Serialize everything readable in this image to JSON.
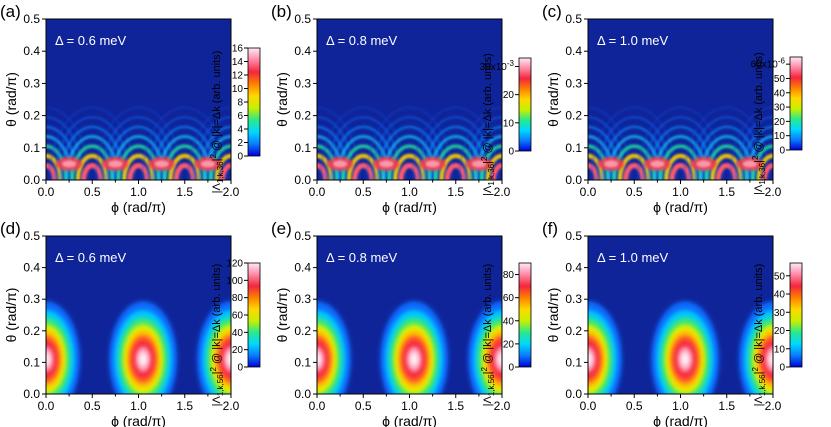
{
  "colors": {
    "background": "#10249a",
    "colormap": [
      "#0000d8",
      "#0a7cff",
      "#00d8ff",
      "#2ae98b",
      "#c8f000",
      "#ffd800",
      "#ff8000",
      "#f4263e",
      "#ff89a6",
      "#ffe9f4"
    ]
  },
  "axes": {
    "xlabel": "ϕ (rad/π)",
    "ylabel": "θ (rad/π)",
    "xticks": [
      "0.0",
      "0.5",
      "1.0",
      "1.5",
      "2.0"
    ],
    "yticks": [
      "0.0",
      "0.1",
      "0.2",
      "0.3",
      "0.4",
      "0.5"
    ],
    "xlim": [
      0,
      2
    ],
    "ylim": [
      0,
      0.5
    ]
  },
  "chart_data": [
    {
      "type": "heatmap",
      "panel": "(a)",
      "annotation": "Δ = 0.6 meV",
      "pattern": "rings",
      "xlim": [
        0,
        2
      ],
      "ylim": [
        0,
        0.5
      ],
      "colorbar": {
        "label_prefix": "|Λ",
        "label_sub": "1,k,36",
        "label_suffix": "|",
        "label_sup": "2",
        "label_tail": " @ |k|=Δk (arb. units)",
        "range": [
          0,
          16
        ],
        "ticks": [
          "0",
          "2",
          "4",
          "6",
          "8",
          "10",
          "12",
          "14",
          "16"
        ],
        "exponent": ""
      }
    },
    {
      "type": "heatmap",
      "panel": "(b)",
      "annotation": "Δ = 0.8 meV",
      "pattern": "rings",
      "xlim": [
        0,
        2
      ],
      "ylim": [
        0,
        0.5
      ],
      "colorbar": {
        "label_prefix": "|Λ",
        "label_sub": "1,k,36",
        "label_suffix": "|",
        "label_sup": "2",
        "label_tail": " @ |k|=Δk (arb. units)",
        "range": [
          0,
          0.033
        ],
        "ticks": [
          "0",
          "10",
          "20",
          "30x10"
        ],
        "exponent": "-3"
      }
    },
    {
      "type": "heatmap",
      "panel": "(c)",
      "annotation": "Δ = 1.0 meV",
      "pattern": "rings",
      "xlim": [
        0,
        2
      ],
      "ylim": [
        0,
        0.5
      ],
      "colorbar": {
        "label_prefix": "|Λ",
        "label_sub": "1,k,36",
        "label_suffix": "|",
        "label_sup": "2",
        "label_tail": " @ |k|=Δk (arb. units)",
        "range": [
          0,
          6.5e-05
        ],
        "ticks": [
          "0",
          "10",
          "20",
          "30",
          "40",
          "50",
          "60x10"
        ],
        "exponent": "-6"
      }
    },
    {
      "type": "heatmap",
      "panel": "(d)",
      "annotation": "Δ = 0.6 meV",
      "pattern": "blobs",
      "xlim": [
        0,
        2
      ],
      "ylim": [
        0,
        0.5
      ],
      "colorbar": {
        "label_prefix": "|Λ",
        "label_sub": "1,k,56",
        "label_suffix": "|",
        "label_sup": "2",
        "label_tail": " @ |k|=Δk (arb. units)",
        "range": [
          0,
          120
        ],
        "ticks": [
          "0",
          "20",
          "40",
          "60",
          "80",
          "100",
          "120"
        ],
        "exponent": ""
      }
    },
    {
      "type": "heatmap",
      "panel": "(e)",
      "annotation": "Δ = 0.8 meV",
      "pattern": "blobs",
      "xlim": [
        0,
        2
      ],
      "ylim": [
        0,
        0.5
      ],
      "colorbar": {
        "label_prefix": "|Λ",
        "label_sub": "1,k,56",
        "label_suffix": "|",
        "label_sup": "2",
        "label_tail": " @ |k|=Δk (arb. units)",
        "range": [
          0,
          90
        ],
        "ticks": [
          "0",
          "20",
          "40",
          "60",
          "80"
        ],
        "exponent": ""
      }
    },
    {
      "type": "heatmap",
      "panel": "(f)",
      "annotation": "Δ = 1.0 meV",
      "pattern": "blobs",
      "xlim": [
        0,
        2
      ],
      "ylim": [
        0,
        0.5
      ],
      "colorbar": {
        "label_prefix": "|Λ",
        "label_sub": "1,k,56",
        "label_suffix": "|",
        "label_sup": "2",
        "label_tail": " @ |k|=Δk (arb. units)",
        "range": [
          0,
          57
        ],
        "ticks": [
          "0",
          "10",
          "20",
          "30",
          "40",
          "50"
        ],
        "exponent": ""
      }
    }
  ]
}
